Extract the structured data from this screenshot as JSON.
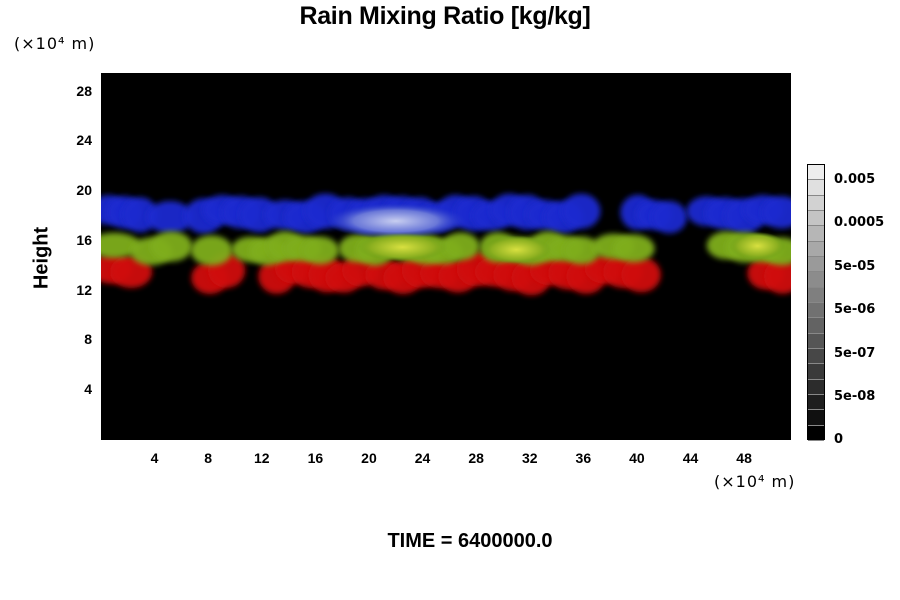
{
  "chart_data": {
    "type": "heatmap",
    "title": "Rain Mixing Ratio [kg/kg]",
    "ylabel": "Height",
    "y_unit": "(×10⁴ m)",
    "x_unit": "(×10⁴ m)",
    "xlim": [
      0,
      51.5
    ],
    "ylim": [
      0,
      29.5
    ],
    "x_ticks": [
      "4",
      "8",
      "12",
      "16",
      "20",
      "24",
      "28",
      "32",
      "36",
      "40",
      "44",
      "48"
    ],
    "y_ticks": [
      "4",
      "8",
      "12",
      "16",
      "20",
      "24",
      "28"
    ],
    "footer": "TIME = 6400000.0",
    "colorbar": {
      "labels": [
        "0.005",
        "0.0005",
        "5e-05",
        "5e-06",
        "5e-07",
        "5e-08",
        "0"
      ],
      "colors": [
        "#000000",
        "#101010",
        "#1e1e1e",
        "#2c2c2c",
        "#3a3a3a",
        "#474747",
        "#555555",
        "#636363",
        "#717171",
        "#7f7f7f",
        "#8c8c8c",
        "#9a9a9a",
        "#a8a8a8",
        "#b6b6b6",
        "#c4c4c4",
        "#d2d2d2",
        "#e0e0e0",
        "#eeeeee"
      ]
    },
    "bands": [
      {
        "name": "upper",
        "color": "#1a2ad0",
        "y_bottom": 16.8,
        "y_top": 19.6
      },
      {
        "name": "middle",
        "color": "#7fae1c",
        "y_bottom": 14.2,
        "y_top": 16.6
      },
      {
        "name": "lower",
        "color": "#d01010",
        "y_bottom": 12.0,
        "y_top": 14.8
      }
    ]
  }
}
